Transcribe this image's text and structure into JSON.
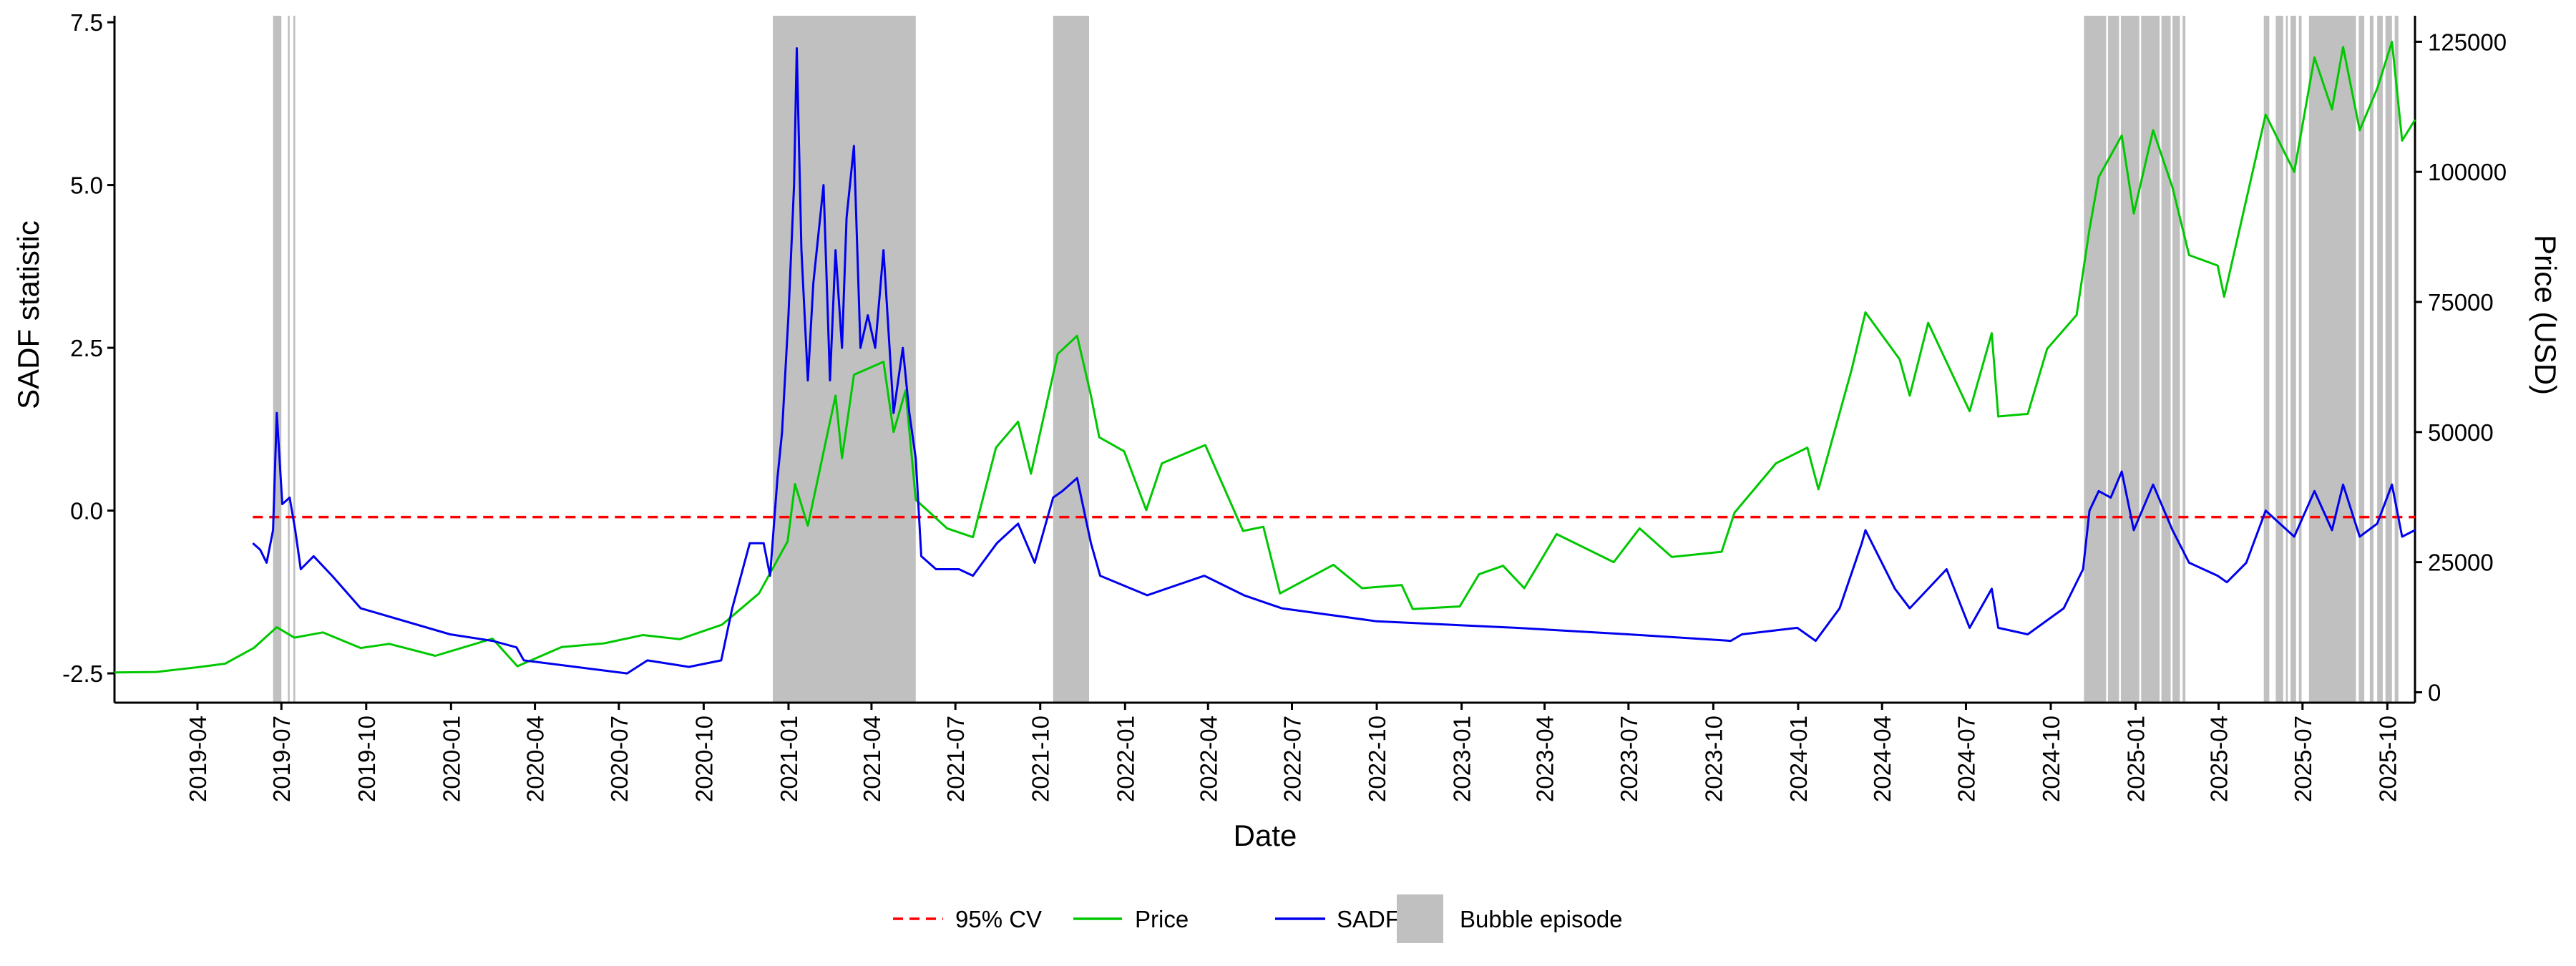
{
  "chart_data": {
    "type": "line",
    "title": "",
    "xlabel": "Date",
    "ylabel_left": "SADF statistic",
    "ylabel_right": "Price (USD)",
    "x_start": "2019-01-01",
    "x_end": "2025-10-31",
    "x_tick_labels": [
      "2019-04",
      "2019-07",
      "2019-10",
      "2020-01",
      "2020-04",
      "2020-07",
      "2020-10",
      "2021-01",
      "2021-04",
      "2021-07",
      "2021-10",
      "2022-01",
      "2022-04",
      "2022-07",
      "2022-10",
      "2023-01",
      "2023-04",
      "2023-07",
      "2023-10",
      "2024-01",
      "2024-04",
      "2024-07",
      "2024-10",
      "2025-01",
      "2025-04",
      "2025-07",
      "2025-10"
    ],
    "y_left_range": [
      -2.95,
      7.6
    ],
    "y_left_ticks": [
      -2.5,
      0.0,
      2.5,
      5.0,
      7.5
    ],
    "y_left_tick_labels": [
      "-2.5",
      "0.0",
      "2.5",
      "5.0",
      "7.5"
    ],
    "y_right_range": [
      -2000,
      130000
    ],
    "y_right_ticks": [
      0,
      25000,
      50000,
      75000,
      100000,
      125000
    ],
    "y_right_tick_labels": [
      "0",
      "25000",
      "50000",
      "75000",
      "100000",
      "125000"
    ],
    "critical_value": {
      "name": "95% CV",
      "value": -0.1,
      "start": "2019-05-31",
      "end": "2025-10-31",
      "color": "#ff0000"
    },
    "series": [
      {
        "name": "Price",
        "axis": "right",
        "color": "#00c800",
        "points": [
          [
            "2019-01-01",
            3800
          ],
          [
            "2019-02-15",
            3900
          ],
          [
            "2019-04-01",
            4800
          ],
          [
            "2019-05-01",
            5500
          ],
          [
            "2019-06-01",
            8500
          ],
          [
            "2019-06-26",
            12500
          ],
          [
            "2019-07-15",
            10500
          ],
          [
            "2019-08-15",
            11500
          ],
          [
            "2019-09-25",
            8500
          ],
          [
            "2019-10-26",
            9300
          ],
          [
            "2019-12-15",
            7000
          ],
          [
            "2020-02-15",
            10300
          ],
          [
            "2020-03-13",
            5000
          ],
          [
            "2020-04-30",
            8700
          ],
          [
            "2020-06-15",
            9400
          ],
          [
            "2020-07-27",
            11000
          ],
          [
            "2020-09-05",
            10200
          ],
          [
            "2020-10-21",
            13000
          ],
          [
            "2020-11-30",
            19000
          ],
          [
            "2020-12-31",
            29000
          ],
          [
            "2021-01-08",
            40000
          ],
          [
            "2021-01-22",
            32000
          ],
          [
            "2021-02-21",
            57000
          ],
          [
            "2021-02-28",
            45000
          ],
          [
            "2021-03-13",
            61000
          ],
          [
            "2021-04-14",
            63500
          ],
          [
            "2021-04-25",
            50000
          ],
          [
            "2021-05-08",
            58000
          ],
          [
            "2021-05-19",
            37000
          ],
          [
            "2021-06-22",
            31500
          ],
          [
            "2021-07-20",
            29800
          ],
          [
            "2021-08-14",
            47000
          ],
          [
            "2021-09-07",
            52000
          ],
          [
            "2021-09-21",
            42000
          ],
          [
            "2021-10-20",
            65000
          ],
          [
            "2021-11-10",
            68500
          ],
          [
            "2021-11-25",
            57000
          ],
          [
            "2021-12-04",
            49000
          ],
          [
            "2021-12-31",
            46300
          ],
          [
            "2022-01-24",
            35000
          ],
          [
            "2022-02-10",
            44000
          ],
          [
            "2022-03-29",
            47500
          ],
          [
            "2022-05-09",
            31000
          ],
          [
            "2022-05-31",
            31800
          ],
          [
            "2022-06-18",
            19000
          ],
          [
            "2022-08-15",
            24500
          ],
          [
            "2022-09-15",
            20000
          ],
          [
            "2022-10-28",
            20600
          ],
          [
            "2022-11-09",
            16000
          ],
          [
            "2022-12-30",
            16500
          ],
          [
            "2023-01-20",
            22700
          ],
          [
            "2023-02-15",
            24300
          ],
          [
            "2023-03-10",
            20000
          ],
          [
            "2023-04-14",
            30400
          ],
          [
            "2023-06-15",
            25000
          ],
          [
            "2023-07-13",
            31500
          ],
          [
            "2023-08-17",
            26000
          ],
          [
            "2023-10-10",
            27000
          ],
          [
            "2023-10-24",
            34500
          ],
          [
            "2023-12-08",
            44000
          ],
          [
            "2024-01-11",
            47000
          ],
          [
            "2024-01-23",
            39000
          ],
          [
            "2024-02-28",
            62000
          ],
          [
            "2024-03-14",
            73000
          ],
          [
            "2024-04-20",
            64000
          ],
          [
            "2024-05-01",
            57000
          ],
          [
            "2024-05-21",
            71000
          ],
          [
            "2024-07-05",
            54000
          ],
          [
            "2024-07-29",
            69000
          ],
          [
            "2024-08-05",
            53000
          ],
          [
            "2024-09-06",
            53500
          ],
          [
            "2024-09-27",
            66000
          ],
          [
            "2024-10-29",
            72500
          ],
          [
            "2024-11-12",
            89000
          ],
          [
            "2024-11-22",
            99000
          ],
          [
            "2024-12-17",
            107000
          ],
          [
            "2024-12-30",
            92000
          ],
          [
            "2025-01-20",
            108000
          ],
          [
            "2025-02-10",
            97000
          ],
          [
            "2025-02-28",
            84000
          ],
          [
            "2025-03-31",
            82000
          ],
          [
            "2025-04-07",
            76000
          ],
          [
            "2025-05-22",
            111000
          ],
          [
            "2025-06-22",
            100000
          ],
          [
            "2025-07-14",
            122000
          ],
          [
            "2025-08-02",
            112000
          ],
          [
            "2025-08-14",
            124000
          ],
          [
            "2025-09-01",
            108000
          ],
          [
            "2025-09-20",
            116000
          ],
          [
            "2025-10-06",
            125000
          ],
          [
            "2025-10-17",
            106000
          ],
          [
            "2025-10-31",
            110000
          ]
        ]
      },
      {
        "name": "SADF",
        "axis": "left",
        "color": "#0000ee",
        "points": [
          [
            "2019-05-31",
            -0.5
          ],
          [
            "2019-06-08",
            -0.6
          ],
          [
            "2019-06-15",
            -0.8
          ],
          [
            "2019-06-22",
            -0.3
          ],
          [
            "2019-06-26",
            1.5
          ],
          [
            "2019-07-02",
            0.1
          ],
          [
            "2019-07-10",
            0.2
          ],
          [
            "2019-07-16",
            -0.3
          ],
          [
            "2019-07-22",
            -0.9
          ],
          [
            "2019-08-05",
            -0.7
          ],
          [
            "2019-08-25",
            -1.0
          ],
          [
            "2019-09-25",
            -1.5
          ],
          [
            "2019-12-31",
            -1.9
          ],
          [
            "2020-02-15",
            -2.0
          ],
          [
            "2020-03-12",
            -2.1
          ],
          [
            "2020-03-20",
            -2.3
          ],
          [
            "2020-07-10",
            -2.5
          ],
          [
            "2020-08-01",
            -2.3
          ],
          [
            "2020-09-15",
            -2.4
          ],
          [
            "2020-10-20",
            -2.3
          ],
          [
            "2020-11-01",
            -1.5
          ],
          [
            "2020-11-20",
            -0.5
          ],
          [
            "2020-12-05",
            -0.5
          ],
          [
            "2020-12-12",
            -1.0
          ],
          [
            "2020-12-20",
            0.5
          ],
          [
            "2020-12-25",
            1.2
          ],
          [
            "2021-01-01",
            3.0
          ],
          [
            "2021-01-07",
            5.0
          ],
          [
            "2021-01-10",
            7.1
          ],
          [
            "2021-01-15",
            4.0
          ],
          [
            "2021-01-22",
            2.0
          ],
          [
            "2021-01-28",
            3.5
          ],
          [
            "2021-02-08",
            5.0
          ],
          [
            "2021-02-15",
            2.0
          ],
          [
            "2021-02-21",
            4.0
          ],
          [
            "2021-02-28",
            2.5
          ],
          [
            "2021-03-05",
            4.5
          ],
          [
            "2021-03-13",
            5.6
          ],
          [
            "2021-03-20",
            2.5
          ],
          [
            "2021-03-28",
            3.0
          ],
          [
            "2021-04-05",
            2.5
          ],
          [
            "2021-04-14",
            4.0
          ],
          [
            "2021-04-25",
            1.5
          ],
          [
            "2021-05-05",
            2.5
          ],
          [
            "2021-05-12",
            1.5
          ],
          [
            "2021-05-19",
            0.8
          ],
          [
            "2021-05-25",
            -0.7
          ],
          [
            "2021-06-10",
            -0.9
          ],
          [
            "2021-07-05",
            -0.9
          ],
          [
            "2021-07-20",
            -1.0
          ],
          [
            "2021-08-15",
            -0.5
          ],
          [
            "2021-09-07",
            -0.2
          ],
          [
            "2021-09-25",
            -0.8
          ],
          [
            "2021-10-15",
            0.2
          ],
          [
            "2021-10-25",
            0.3
          ],
          [
            "2021-11-10",
            0.5
          ],
          [
            "2021-11-25",
            -0.5
          ],
          [
            "2021-12-05",
            -1.0
          ],
          [
            "2022-01-25",
            -1.3
          ],
          [
            "2022-03-28",
            -1.0
          ],
          [
            "2022-05-10",
            -1.3
          ],
          [
            "2022-06-20",
            -1.5
          ],
          [
            "2022-10-01",
            -1.7
          ],
          [
            "2023-03-01",
            -1.8
          ],
          [
            "2023-07-01",
            -1.9
          ],
          [
            "2023-10-20",
            -2.0
          ],
          [
            "2023-11-01",
            -1.9
          ],
          [
            "2023-12-31",
            -1.8
          ],
          [
            "2024-01-20",
            -2.0
          ],
          [
            "2024-02-15",
            -1.5
          ],
          [
            "2024-03-10",
            -0.5
          ],
          [
            "2024-03-14",
            -0.3
          ],
          [
            "2024-04-15",
            -1.2
          ],
          [
            "2024-05-01",
            -1.5
          ],
          [
            "2024-06-10",
            -0.9
          ],
          [
            "2024-07-05",
            -1.8
          ],
          [
            "2024-07-29",
            -1.2
          ],
          [
            "2024-08-05",
            -1.8
          ],
          [
            "2024-09-06",
            -1.9
          ],
          [
            "2024-10-15",
            -1.5
          ],
          [
            "2024-11-05",
            -0.9
          ],
          [
            "2024-11-12",
            0.0
          ],
          [
            "2024-11-22",
            0.3
          ],
          [
            "2024-12-05",
            0.2
          ],
          [
            "2024-12-17",
            0.6
          ],
          [
            "2024-12-30",
            -0.3
          ],
          [
            "2025-01-20",
            0.4
          ],
          [
            "2025-02-10",
            -0.3
          ],
          [
            "2025-02-28",
            -0.8
          ],
          [
            "2025-03-31",
            -1.0
          ],
          [
            "2025-04-10",
            -1.1
          ],
          [
            "2025-05-01",
            -0.8
          ],
          [
            "2025-05-22",
            0.0
          ],
          [
            "2025-06-22",
            -0.4
          ],
          [
            "2025-07-14",
            0.3
          ],
          [
            "2025-08-02",
            -0.3
          ],
          [
            "2025-08-14",
            0.4
          ],
          [
            "2025-09-01",
            -0.4
          ],
          [
            "2025-09-20",
            -0.2
          ],
          [
            "2025-10-06",
            0.4
          ],
          [
            "2025-10-17",
            -0.4
          ],
          [
            "2025-10-31",
            -0.3
          ]
        ]
      }
    ],
    "bubble_episodes": [
      [
        "2019-06-22",
        "2019-07-01"
      ],
      [
        "2019-07-08",
        "2019-07-10"
      ],
      [
        "2019-07-14",
        "2019-07-16"
      ],
      [
        "2020-12-15",
        "2021-05-19"
      ],
      [
        "2021-10-15",
        "2021-11-23"
      ],
      [
        "2024-11-06",
        "2024-11-30"
      ],
      [
        "2024-12-02",
        "2024-12-14"
      ],
      [
        "2024-12-16",
        "2025-01-05"
      ],
      [
        "2025-01-07",
        "2025-01-27"
      ],
      [
        "2025-01-29",
        "2025-02-08"
      ],
      [
        "2025-02-10",
        "2025-02-18"
      ],
      [
        "2025-02-21",
        "2025-02-24"
      ],
      [
        "2025-05-20",
        "2025-05-26"
      ],
      [
        "2025-06-02",
        "2025-06-10"
      ],
      [
        "2025-06-13",
        "2025-06-15"
      ],
      [
        "2025-06-18",
        "2025-06-24"
      ],
      [
        "2025-06-27",
        "2025-06-30"
      ],
      [
        "2025-07-08",
        "2025-08-28"
      ],
      [
        "2025-08-31",
        "2025-09-06"
      ],
      [
        "2025-09-12",
        "2025-09-16"
      ],
      [
        "2025-09-20",
        "2025-09-26"
      ],
      [
        "2025-09-29",
        "2025-10-06"
      ],
      [
        "2025-10-09",
        "2025-10-13"
      ]
    ],
    "bubble_color": "#c0c0c0",
    "legend": {
      "position": "bottom",
      "items": [
        {
          "label": "95% CV",
          "kind": "dashed-line",
          "color": "#ff0000"
        },
        {
          "label": "Price",
          "kind": "line",
          "color": "#00c800"
        },
        {
          "label": "SADF",
          "kind": "line",
          "color": "#0000ee"
        },
        {
          "label": "Bubble episode",
          "kind": "fill",
          "color": "#c0c0c0"
        }
      ]
    }
  }
}
